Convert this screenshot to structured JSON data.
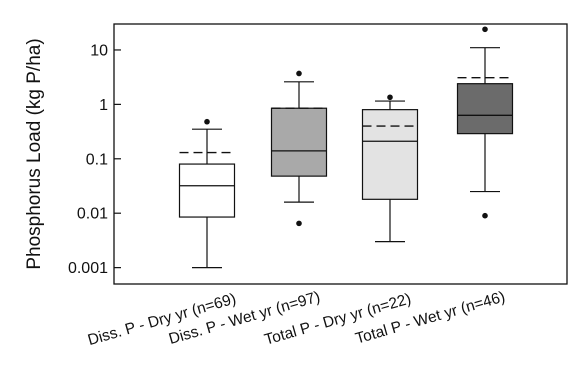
{
  "chart_data": {
    "type": "box",
    "ylabel": "Phosphorus Load (kg P/ha)",
    "yscale": "log",
    "ylim": [
      0.0005,
      30
    ],
    "yticks": [
      0.001,
      0.01,
      0.1,
      1,
      10
    ],
    "ytick_labels": [
      "0.001",
      "0.01",
      "0.1",
      "1",
      "10"
    ],
    "categories": [
      "Diss. P - Dry yr (n=69)",
      "Diss. P - Wet yr (n=97)",
      "Total P - Dry yr (n=22)",
      "Total P - Wet yr (n=46)"
    ],
    "boxes": [
      {
        "whisker_low": 0.001,
        "q1": 0.0085,
        "median": 0.032,
        "q3": 0.08,
        "whisker_high": 0.35,
        "mean": 0.13,
        "outliers": [
          0.48
        ],
        "fill": "#ffffff"
      },
      {
        "whisker_low": 0.016,
        "q1": 0.048,
        "median": 0.14,
        "q3": 0.85,
        "whisker_high": 2.6,
        "mean": 0.85,
        "outliers": [
          0.0065,
          3.7
        ],
        "fill": "#a9a9a9"
      },
      {
        "whisker_low": 0.003,
        "q1": 0.018,
        "median": 0.21,
        "q3": 0.8,
        "whisker_high": 1.15,
        "mean": 0.4,
        "outliers": [
          1.35
        ],
        "fill": "#e3e3e3"
      },
      {
        "whisker_low": 0.025,
        "q1": 0.29,
        "median": 0.63,
        "q3": 2.4,
        "whisker_high": 11,
        "mean": 3.1,
        "outliers": [
          0.009,
          24
        ],
        "fill": "#6b6b6b"
      }
    ],
    "grid": false,
    "legend": "none"
  }
}
